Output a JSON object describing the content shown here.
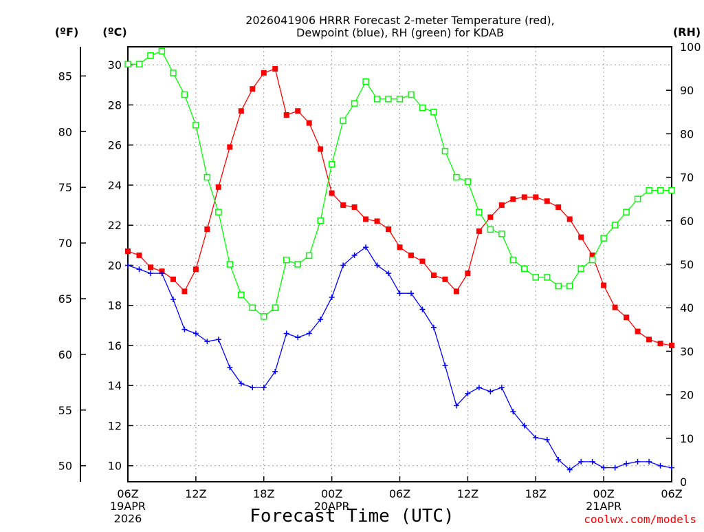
{
  "chart_data": {
    "type": "line",
    "title_line1": "2026041906 HRRR Forecast 2-meter Temperature (red),",
    "title_line2": "Dewpoint (blue), RH (green) for KDAB",
    "xlabel": "Forecast Time (UTC)",
    "credit": "coolwx.com/models",
    "units": {
      "fahrenheit": "(ºF)",
      "celsius": "(ºC)",
      "rh": "(RH)"
    },
    "x_hours_range": [
      0,
      48
    ],
    "x_ticks": [
      {
        "hour": 0,
        "label": "06Z",
        "sub1": "19APR",
        "sub2": "2026"
      },
      {
        "hour": 6,
        "label": "12Z",
        "sub1": "",
        "sub2": ""
      },
      {
        "hour": 12,
        "label": "18Z",
        "sub1": "",
        "sub2": ""
      },
      {
        "hour": 18,
        "label": "00Z",
        "sub1": "20APR",
        "sub2": ""
      },
      {
        "hour": 24,
        "label": "06Z",
        "sub1": "",
        "sub2": ""
      },
      {
        "hour": 30,
        "label": "12Z",
        "sub1": "",
        "sub2": ""
      },
      {
        "hour": 36,
        "label": "18Z",
        "sub1": "",
        "sub2": ""
      },
      {
        "hour": 42,
        "label": "00Z",
        "sub1": "21APR",
        "sub2": ""
      },
      {
        "hour": 48,
        "label": "06Z",
        "sub1": "",
        "sub2": ""
      }
    ],
    "celsius_axis": {
      "range": [
        9.2,
        30.9
      ],
      "ticks": [
        10,
        12,
        14,
        16,
        18,
        20,
        22,
        24,
        26,
        28,
        30
      ]
    },
    "fahrenheit_axis": {
      "ticks": [
        50,
        55,
        60,
        65,
        70,
        75,
        80,
        85
      ]
    },
    "rh_axis": {
      "range": [
        0,
        100
      ],
      "ticks": [
        0,
        10,
        20,
        30,
        40,
        50,
        60,
        70,
        80,
        90,
        100
      ]
    },
    "series": [
      {
        "name": "2-meter Temperature",
        "color": "#ff0000",
        "marker": "filled-square",
        "axis": "celsius",
        "values": [
          20.7,
          20.5,
          19.9,
          19.7,
          19.3,
          18.7,
          19.8,
          21.8,
          23.9,
          25.9,
          27.7,
          28.8,
          29.6,
          29.8,
          27.5,
          27.7,
          27.1,
          25.8,
          23.6,
          23.0,
          22.9,
          22.3,
          22.2,
          21.8,
          20.9,
          20.5,
          20.2,
          19.5,
          19.3,
          18.7,
          19.6,
          21.7,
          22.4,
          23.0,
          23.3,
          23.4,
          23.4,
          23.2,
          22.9,
          22.3,
          21.4,
          20.5,
          19.0,
          17.9,
          17.4,
          16.7,
          16.3,
          16.1,
          16.0
        ]
      },
      {
        "name": "Dewpoint",
        "color": "#0000ff",
        "marker": "plus",
        "axis": "celsius",
        "values": [
          20.0,
          19.8,
          19.6,
          19.6,
          18.3,
          16.8,
          16.6,
          16.2,
          16.3,
          14.9,
          14.1,
          13.9,
          13.9,
          14.7,
          16.6,
          16.4,
          16.6,
          17.3,
          18.4,
          20.0,
          20.5,
          20.9,
          20.0,
          19.6,
          18.6,
          18.6,
          17.8,
          16.9,
          15.0,
          13.0,
          13.6,
          13.9,
          13.7,
          13.9,
          12.7,
          12.0,
          11.4,
          11.3,
          10.3,
          9.8,
          10.2,
          10.2,
          9.9,
          9.9,
          10.1,
          10.2,
          10.2,
          10.0,
          9.9
        ]
      },
      {
        "name": "RH",
        "color": "#00ff00",
        "marker": "open-square",
        "axis": "rh",
        "values": [
          96,
          96,
          98,
          99,
          94,
          89,
          82,
          70,
          62,
          50,
          43,
          40,
          38,
          40,
          51,
          50,
          52,
          60,
          73,
          83,
          87,
          92,
          88,
          88,
          88,
          89,
          86,
          85,
          76,
          70,
          69,
          62,
          58,
          57,
          51,
          49,
          47,
          47,
          45,
          45,
          49,
          51,
          56,
          59,
          62,
          65,
          67,
          67,
          67
        ]
      }
    ]
  }
}
